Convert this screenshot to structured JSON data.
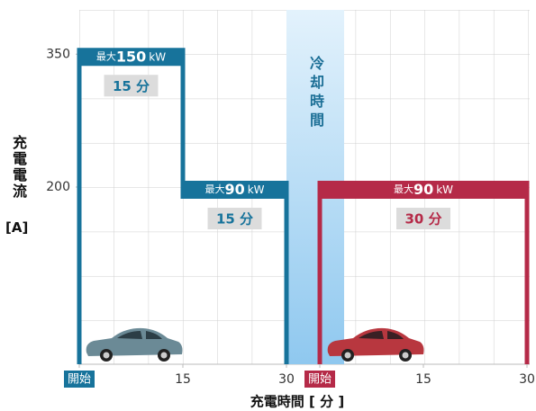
{
  "chart_data": {
    "type": "charging-profile",
    "y_label": "充電電流",
    "y_unit": "[A]",
    "x_label": "充電時間 [ 分 ]",
    "ylim": [
      0,
      400
    ],
    "yticks": [
      200,
      350
    ],
    "xlim": [
      0,
      30
    ],
    "xticks": [
      {
        "value": 0,
        "label": "開始"
      },
      15,
      30
    ],
    "cooling_label": "冷却時間",
    "power_prefix": "最大",
    "power_unit": "kW",
    "sessions": [
      {
        "color": "#17739b",
        "segments": [
          {
            "start": 0,
            "end": 15,
            "current": 350,
            "power": 150,
            "duration": "15 分"
          },
          {
            "start": 15,
            "end": 30,
            "current": 200,
            "power": 90,
            "duration": "15 分"
          }
        ]
      },
      {
        "color": "#b52a48",
        "segments": [
          {
            "start": 0,
            "end": 30,
            "current": 200,
            "power": 90,
            "duration": "30 分"
          }
        ]
      }
    ]
  }
}
